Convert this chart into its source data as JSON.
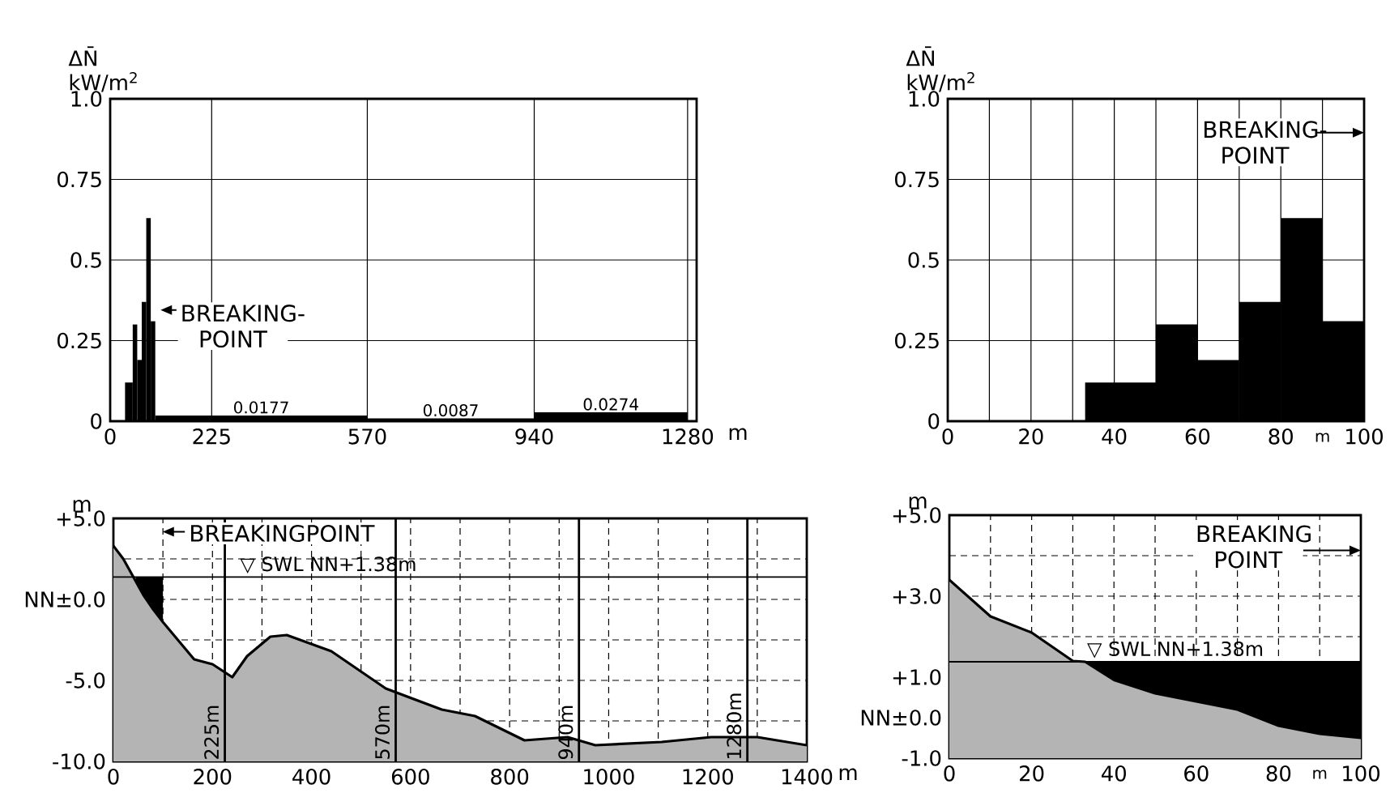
{
  "chart_data": [
    {
      "type": "histogram",
      "ylabel": "ΔN̄ kW/m$^{2}$",
      "xlabel": "m",
      "color": "#000000",
      "bins": [
        33,
        50,
        60,
        70,
        80,
        90,
        100,
        570,
        940,
        1280
      ],
      "values": [
        0.12,
        0.3,
        0.19,
        0.37,
        0.63,
        0.31,
        0.0177,
        0.0087,
        0.0274
      ],
      "value_labels": [
        null,
        null,
        null,
        null,
        null,
        null,
        "0.0177",
        "0.0087",
        "0.0274"
      ],
      "xlim": [
        0,
        1300
      ],
      "ylim": [
        0,
        1
      ],
      "xticks": [
        0,
        225,
        570,
        940,
        1280
      ],
      "yticks": [
        0,
        0.25,
        0.5,
        0.75,
        {
          "value": 1,
          "label": "1.0"
        }
      ],
      "grid": true,
      "annotations": [
        "BREAKING-POINT"
      ]
    },
    {
      "type": "histogram",
      "ylabel": "ΔN̄ kW/m$^{2}$",
      "xlabel": "m",
      "color": "#000000",
      "bins": [
        33,
        50,
        60,
        70,
        80,
        90,
        100
      ],
      "values": [
        0.12,
        0.3,
        0.19,
        0.37,
        0.63,
        0.31
      ],
      "xlim": [
        0,
        100
      ],
      "ylim": [
        0,
        1
      ],
      "xticks": [
        0,
        {
          "value": 10,
          "label": null
        },
        20,
        {
          "value": 30,
          "label": null
        },
        40,
        {
          "value": 50,
          "label": null
        },
        60,
        {
          "value": 70,
          "label": null
        },
        80,
        {
          "value": 90,
          "label": null
        },
        100
      ],
      "yticks": [
        0,
        0.25,
        0.5,
        0.75,
        {
          "value": 1,
          "label": "1.0"
        }
      ],
      "grid": true,
      "annotations": [
        "BREAKING-POINT"
      ]
    },
    {
      "type": "area",
      "ylabel": "m",
      "xlabel": "m",
      "xlim": [
        0,
        1400
      ],
      "ylim": [
        -10,
        5
      ],
      "xticks": [
        0,
        {
          "value": 100,
          "label": null
        },
        200,
        {
          "value": 300,
          "label": null
        },
        400,
        {
          "value": 500,
          "label": null
        },
        600,
        {
          "value": 700,
          "label": null
        },
        800,
        {
          "value": 900,
          "label": null
        },
        1000,
        {
          "value": 1100,
          "label": null
        },
        1200,
        {
          "value": 1300,
          "label": null
        },
        1400
      ],
      "yticks": [
        {
          "value": -10,
          "label": "-10.0"
        },
        {
          "value": -7.5,
          "label": null
        },
        {
          "value": -5,
          "label": "-5.0"
        },
        {
          "value": -2.5,
          "label": null
        },
        {
          "value": 0,
          "label": "NN±0.0"
        },
        {
          "value": 2.5,
          "label": null
        },
        {
          "value": 5,
          "label": "+5.0"
        }
      ],
      "grid": true,
      "series": [
        {
          "color": "#000000",
          "x": [
            45,
            100
          ],
          "values": [
            1.38,
            1.38
          ]
        },
        {
          "color": "#b4b4b4",
          "x": [
            0,
            20,
            40,
            60,
            80,
            100,
            163,
            200,
            240,
            270,
            317,
            350,
            440,
            550,
            663,
            730,
            830,
            917,
            973,
            1107,
            1207,
            1300,
            1400
          ],
          "values": [
            3.3,
            2.5,
            1.4,
            0.3,
            -0.6,
            -1.4,
            -3.7,
            -4.0,
            -4.8,
            -3.5,
            -2.3,
            -2.2,
            -3.2,
            -5.5,
            -6.8,
            -7.2,
            -8.7,
            -8.5,
            -9.0,
            -8.8,
            -8.5,
            -8.5,
            -9.0
          ]
        }
      ],
      "ref_lines": [
        {
          "axis": "y",
          "value": 1.38,
          "label": "▽ SWL NN+1.38m"
        },
        {
          "axis": "x",
          "value": 225,
          "label": "225m"
        },
        {
          "axis": "x",
          "value": 570,
          "label": "570m"
        },
        {
          "axis": "x",
          "value": 940,
          "label": "940m"
        },
        {
          "axis": "x",
          "value": 1280,
          "label": "1280m"
        }
      ],
      "annotations": [
        "BREAKINGPOINT"
      ]
    },
    {
      "type": "area",
      "ylabel": "m",
      "xlabel": "m",
      "xlim": [
        0,
        100
      ],
      "ylim": [
        -1,
        5
      ],
      "xticks": [
        0,
        {
          "value": 10,
          "label": null
        },
        20,
        {
          "value": 30,
          "label": null
        },
        40,
        {
          "value": 50,
          "label": null
        },
        60,
        {
          "value": 70,
          "label": null
        },
        80,
        {
          "value": 90,
          "label": null
        },
        100
      ],
      "yticks": [
        {
          "value": -1,
          "label": "-1.0"
        },
        {
          "value": 0,
          "label": "NN±0.0"
        },
        {
          "value": 1,
          "label": "+1.0"
        },
        {
          "value": 2,
          "label": null
        },
        {
          "value": 3,
          "label": "+3.0"
        },
        {
          "value": 4,
          "label": null
        },
        {
          "value": 5,
          "label": "+5.0"
        }
      ],
      "grid": true,
      "series": [
        {
          "color": "#000000",
          "x": [
            33,
            100
          ],
          "values": [
            1.38,
            1.38
          ]
        },
        {
          "color": "#b4b4b4",
          "x": [
            0,
            10,
            20,
            30,
            33,
            40,
            50,
            60,
            70,
            80,
            90,
            100
          ],
          "values": [
            3.4,
            2.5,
            2.1,
            1.4,
            1.38,
            0.93,
            0.6,
            0.4,
            0.2,
            -0.2,
            -0.4,
            -0.5
          ]
        }
      ],
      "ref_lines": [
        {
          "axis": "y",
          "value": 1.38,
          "label": "▽ SWL NN+1.38m"
        }
      ],
      "annotations": [
        "BREAKING POINT"
      ]
    }
  ]
}
